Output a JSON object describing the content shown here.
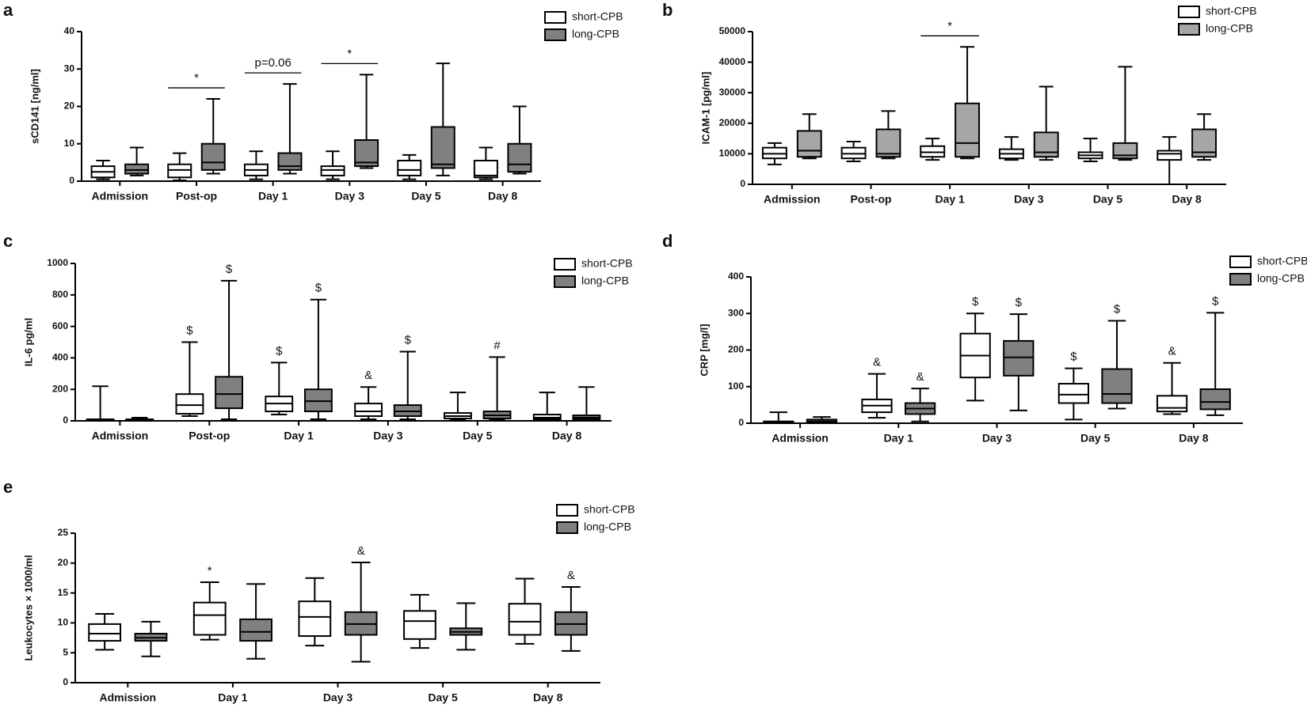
{
  "chart_data": [
    {
      "type": "box",
      "label": "a",
      "y_label": "sCD141 [ng/ml]",
      "categories": [
        "Admission",
        "Post-op",
        "Day 1",
        "Day 3",
        "Day 5",
        "Day 8"
      ],
      "ylim": [
        0,
        40
      ],
      "yticks": [
        0,
        10,
        20,
        30,
        40
      ],
      "bracket_annotations": [
        null,
        "*",
        "p=0.06",
        "*",
        null,
        null
      ],
      "series": [
        {
          "name": "short-CPB",
          "color": "#ffffff",
          "min": [
            0.5,
            0.2,
            0.5,
            0.5,
            0.5,
            0.5
          ],
          "q1": [
            1,
            1,
            1.5,
            1.5,
            1.5,
            1
          ],
          "median": [
            2.5,
            3,
            3,
            3,
            3,
            1.5
          ],
          "q3": [
            4,
            4.5,
            4.5,
            4,
            5.5,
            5.5
          ],
          "max": [
            5.5,
            7.5,
            8,
            8,
            7,
            9
          ]
        },
        {
          "name": "long-CPB",
          "color": "#808080",
          "min": [
            1.5,
            2,
            2,
            3.5,
            1.5,
            2
          ],
          "q1": [
            2,
            3,
            3,
            4,
            3.5,
            2.5
          ],
          "median": [
            3,
            5,
            4,
            5,
            4.5,
            4.5
          ],
          "q3": [
            4.5,
            10,
            7.5,
            11,
            14.5,
            10
          ],
          "max": [
            9,
            22,
            26,
            28.5,
            31.5,
            20
          ]
        }
      ]
    },
    {
      "type": "box",
      "label": "b",
      "y_label": "ICAM-1 [pg/ml]",
      "categories": [
        "Admission",
        "Post-op",
        "Day 1",
        "Day 3",
        "Day 5",
        "Day 8"
      ],
      "ylim": [
        0,
        50000
      ],
      "yticks": [
        0,
        10000,
        20000,
        30000,
        40000,
        50000
      ],
      "bracket_annotations": [
        null,
        null,
        "*",
        null,
        null,
        null
      ],
      "series": [
        {
          "name": "short-CPB",
          "color": "#ffffff",
          "min": [
            6500,
            7500,
            8000,
            8000,
            7500,
            0
          ],
          "q1": [
            8500,
            8500,
            9000,
            8500,
            8500,
            8000
          ],
          "median": [
            10000,
            10000,
            10500,
            10000,
            9500,
            10000
          ],
          "q3": [
            12000,
            12000,
            12500,
            11500,
            10500,
            11000
          ],
          "max": [
            13500,
            14000,
            15000,
            15500,
            15000,
            15500
          ]
        },
        {
          "name": "long-CPB",
          "color": "#a6a6a6",
          "min": [
            8500,
            8500,
            8500,
            8000,
            8000,
            8000
          ],
          "q1": [
            9000,
            9000,
            9000,
            9000,
            8500,
            9000
          ],
          "median": [
            11000,
            10000,
            13500,
            10500,
            9500,
            10500
          ],
          "q3": [
            17500,
            18000,
            26500,
            17000,
            13500,
            18000
          ],
          "max": [
            23000,
            24000,
            45000,
            32000,
            38500,
            23000
          ]
        }
      ]
    },
    {
      "type": "box",
      "label": "c",
      "y_label": "IL-6 pg/ml",
      "categories": [
        "Admission",
        "Post-op",
        "Day 1",
        "Day 3",
        "Day 5",
        "Day 8"
      ],
      "ylim": [
        0,
        1000
      ],
      "yticks": [
        0,
        200,
        400,
        600,
        800,
        1000
      ],
      "series": [
        {
          "name": "short-CPB",
          "color": "#ffffff",
          "min": [
            0,
            30,
            40,
            10,
            5,
            5
          ],
          "q1": [
            2,
            45,
            60,
            30,
            15,
            10
          ],
          "median": [
            5,
            100,
            110,
            60,
            30,
            20
          ],
          "q3": [
            10,
            170,
            155,
            110,
            50,
            40
          ],
          "max": [
            220,
            500,
            370,
            215,
            180,
            180
          ],
          "annotations": [
            null,
            "$",
            "$",
            "&",
            null,
            null
          ]
        },
        {
          "name": "long-CPB",
          "color": "#808080",
          "min": [
            0,
            10,
            10,
            10,
            5,
            2
          ],
          "q1": [
            3,
            80,
            60,
            30,
            15,
            10
          ],
          "median": [
            5,
            170,
            125,
            60,
            35,
            20
          ],
          "q3": [
            10,
            280,
            200,
            100,
            60,
            35
          ],
          "max": [
            20,
            890,
            770,
            440,
            405,
            215
          ],
          "annotations": [
            null,
            "$",
            "$",
            "$",
            "#",
            null
          ]
        }
      ]
    },
    {
      "type": "box",
      "label": "d",
      "y_label": "CRP [mg/l]",
      "categories": [
        "Admission",
        "Day 1",
        "Day 3",
        "Day 5",
        "Day 8"
      ],
      "ylim": [
        0,
        400
      ],
      "yticks": [
        0,
        100,
        200,
        300,
        400
      ],
      "series": [
        {
          "name": "short-CPB",
          "color": "#ffffff",
          "min": [
            0,
            15,
            62,
            10,
            25
          ],
          "q1": [
            1,
            30,
            125,
            55,
            32
          ],
          "median": [
            3,
            48,
            185,
            78,
            42
          ],
          "q3": [
            5,
            65,
            245,
            108,
            75
          ],
          "max": [
            30,
            135,
            300,
            150,
            165
          ],
          "annotations": [
            null,
            "&",
            "$",
            "$",
            "&"
          ]
        },
        {
          "name": "long-CPB",
          "color": "#808080",
          "min": [
            0,
            5,
            35,
            40,
            22
          ],
          "q1": [
            2,
            25,
            130,
            55,
            38
          ],
          "median": [
            5,
            40,
            180,
            80,
            58
          ],
          "q3": [
            10,
            55,
            225,
            148,
            93
          ],
          "max": [
            17,
            95,
            298,
            280,
            302
          ],
          "annotations": [
            null,
            "&",
            "$",
            "$",
            "$"
          ]
        }
      ]
    },
    {
      "type": "box",
      "label": "e",
      "y_label": "Leukocytes × 1000/ml",
      "categories": [
        "Admission",
        "Day 1",
        "Day 3",
        "Day 5",
        "Day 8"
      ],
      "ylim": [
        0,
        25
      ],
      "yticks": [
        0,
        5,
        10,
        15,
        20,
        25
      ],
      "series": [
        {
          "name": "short-CPB",
          "color": "#ffffff",
          "min": [
            5.5,
            7.2,
            6.2,
            5.8,
            6.5
          ],
          "q1": [
            7,
            8,
            7.8,
            7.3,
            8
          ],
          "median": [
            8.2,
            11.3,
            11,
            10.3,
            10.2
          ],
          "q3": [
            9.8,
            13.4,
            13.6,
            12,
            13.2
          ],
          "max": [
            11.5,
            16.8,
            17.5,
            14.7,
            17.4
          ],
          "annotations": [
            null,
            "*",
            null,
            null,
            null
          ]
        },
        {
          "name": "long-CPB",
          "color": "#808080",
          "min": [
            4.4,
            4,
            3.5,
            5.5,
            5.3
          ],
          "q1": [
            7,
            7,
            8,
            8,
            8
          ],
          "median": [
            7.5,
            8.5,
            9.8,
            8.5,
            9.8
          ],
          "q3": [
            8.2,
            10.6,
            11.8,
            9.1,
            11.8
          ],
          "max": [
            10.2,
            16.5,
            20.1,
            13.3,
            16
          ],
          "annotations": [
            null,
            null,
            "&",
            null,
            "&"
          ]
        }
      ]
    }
  ]
}
